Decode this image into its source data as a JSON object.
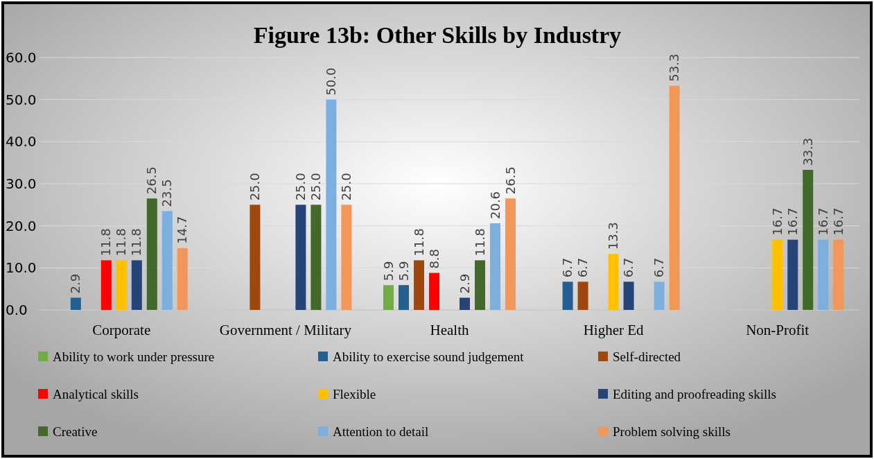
{
  "chart_data": {
    "type": "bar",
    "title": "Figure 13b: Other Skills by Industry",
    "categories": [
      "Corporate",
      "Government / Military",
      "Health",
      "Higher Ed",
      "Non-Profit"
    ],
    "ylim": [
      0,
      60
    ],
    "yticks": [
      {
        "value": 0,
        "label": "0.0"
      },
      {
        "value": 10,
        "label": "10.0"
      },
      {
        "value": 20,
        "label": "20.0"
      },
      {
        "value": 30,
        "label": "30.0"
      },
      {
        "value": 40,
        "label": "40.0"
      },
      {
        "value": 50,
        "label": "50.0"
      },
      {
        "value": 60,
        "label": "60.0"
      }
    ],
    "grid": "y",
    "legend": "bottom",
    "series": [
      {
        "name": "Ability to work under pressure",
        "color": "#70ad47",
        "values": [
          null,
          null,
          5.9,
          null,
          null
        ],
        "value_labels": [
          null,
          null,
          "5.9",
          null,
          null
        ]
      },
      {
        "name": "Ability to exercise sound judgement",
        "color": "#255e91",
        "values": [
          2.9,
          null,
          5.9,
          6.7,
          null
        ],
        "value_labels": [
          "2.9",
          null,
          "5.9",
          "6.7",
          null
        ]
      },
      {
        "name": "Self-directed",
        "color": "#9e480e",
        "values": [
          null,
          25.0,
          11.8,
          6.7,
          null
        ],
        "value_labels": [
          null,
          "25.0",
          "11.8",
          "6.7",
          null
        ]
      },
      {
        "name": "Analytical skills",
        "color": "#ff0000",
        "values": [
          11.8,
          null,
          8.8,
          null,
          null
        ],
        "value_labels": [
          "11.8",
          null,
          "8.8",
          null,
          null
        ]
      },
      {
        "name": "Flexible",
        "color": "#ffc000",
        "values": [
          11.8,
          null,
          null,
          13.3,
          16.7
        ],
        "value_labels": [
          "11.8",
          null,
          null,
          "13.3",
          "16.7"
        ]
      },
      {
        "name": "Editing and proofreading skills",
        "color": "#264478",
        "values": [
          11.8,
          25.0,
          2.9,
          6.7,
          16.7
        ],
        "value_labels": [
          "11.8",
          "25.0",
          "2.9",
          "6.7",
          "16.7"
        ]
      },
      {
        "name": "Creative",
        "color": "#43682b",
        "values": [
          26.5,
          25.0,
          11.8,
          null,
          33.3
        ],
        "value_labels": [
          "26.5",
          "25.0",
          "11.8",
          null,
          "33.3"
        ]
      },
      {
        "name": "Attention to detail",
        "color": "#7cafdd",
        "values": [
          23.5,
          50.0,
          20.6,
          6.7,
          16.7
        ],
        "value_labels": [
          "23.5",
          "50.0",
          "20.6",
          "6.7",
          "16.7"
        ]
      },
      {
        "name": "Problem solving skills",
        "color": "#f1975a",
        "values": [
          14.7,
          25.0,
          26.5,
          53.3,
          16.7
        ],
        "value_labels": [
          "14.7",
          "25.0",
          "26.5",
          "53.3",
          "16.7"
        ]
      }
    ]
  }
}
